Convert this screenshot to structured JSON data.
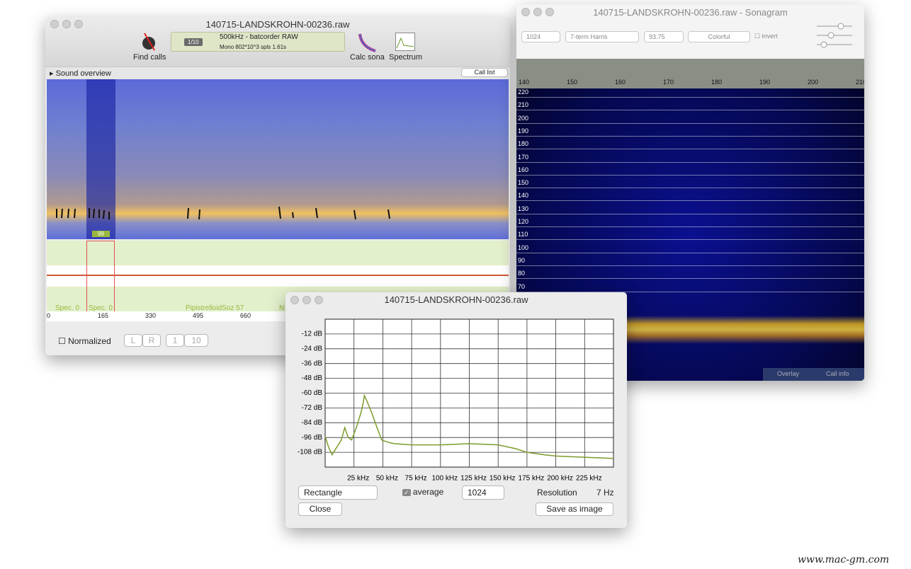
{
  "main_window": {
    "title": "140715-LANDSKROHN-00236.raw",
    "find_calls": "Find calls",
    "page": "1/10",
    "format": "500kHz - batcorder RAW",
    "info": "Mono 802*10^3 spls 1.61s",
    "calc_sona": "Calc sona",
    "spectrum": "Spectrum",
    "sound_overview": "Sound overview",
    "call_list": "Call list",
    "marker": "99",
    "labels": [
      "Spec. 0",
      "Spec. 0",
      "PipistrelloidSoz 57",
      "N"
    ],
    "timeline": [
      0,
      165,
      330,
      495,
      660
    ],
    "normalized": "Normalized",
    "buttons": [
      "L",
      "R",
      "1",
      "10"
    ]
  },
  "sonagram_window": {
    "title": "140715-LANDSKROHN-00236.raw - Sonagram",
    "fft_size": "1024",
    "window": "7-term Harris",
    "overlap": "93.75",
    "palette": "Colorful",
    "invert": "invert",
    "time_labels": [
      140,
      150,
      160,
      170,
      180,
      190,
      200,
      210
    ],
    "freq_labels": [
      220,
      210,
      200,
      190,
      180,
      170,
      160,
      150,
      140,
      130,
      120,
      110,
      100,
      90,
      80,
      70
    ],
    "tabs": [
      "Overlay",
      "Call info"
    ]
  },
  "spectrum_window": {
    "title": "140715-LANDSKROHN-00236.raw",
    "chart": {
      "type": "line",
      "color": "#7d9c2c",
      "x": [
        0,
        3,
        6,
        10,
        14,
        17,
        20,
        23,
        27,
        31,
        33,
        34,
        36,
        40,
        45,
        49,
        55,
        60,
        75,
        100,
        125,
        150,
        165,
        175,
        190,
        200,
        225,
        250
      ],
      "values": [
        -95,
        -104,
        -110,
        -104,
        -98,
        -88,
        -96,
        -98,
        -88,
        -76,
        -68,
        -62,
        -66,
        -75,
        -88,
        -98,
        -100,
        -101,
        -102,
        -102,
        -101,
        -102,
        -105,
        -108,
        -110,
        -111,
        -112,
        -113
      ],
      "xlim": [
        0,
        250
      ],
      "ylim": [
        -120,
        0
      ],
      "xticks": [
        {
          "value": 25,
          "label": "25 kHz"
        },
        {
          "value": 50,
          "label": "50 kHz"
        },
        {
          "value": 75,
          "label": "75 kHz"
        },
        {
          "value": 100,
          "label": "100 kHz"
        },
        {
          "value": 125,
          "label": "125 kHz"
        },
        {
          "value": 150,
          "label": "150 kHz"
        },
        {
          "value": 175,
          "label": "175 kHz"
        },
        {
          "value": 200,
          "label": "200 kHz"
        },
        {
          "value": 225,
          "label": "225 kHz"
        }
      ],
      "yticks": [
        {
          "value": -12,
          "label": "-12 dB"
        },
        {
          "value": -24,
          "label": "-24 dB"
        },
        {
          "value": -36,
          "label": "-36 dB"
        },
        {
          "value": -48,
          "label": "-48 dB"
        },
        {
          "value": -60,
          "label": "-60 dB"
        },
        {
          "value": -72,
          "label": "-72 dB"
        },
        {
          "value": -84,
          "label": "-84 dB"
        },
        {
          "value": -96,
          "label": "-96 dB"
        },
        {
          "value": -108,
          "label": "-108 dB"
        }
      ],
      "grid": true
    },
    "window_select": "Rectangle",
    "average": "average",
    "size": "1024",
    "resolution_label": "Resolution",
    "resolution": "7 Hz",
    "close": "Close",
    "save": "Save as image"
  },
  "watermark": "www.mac-gm.com"
}
